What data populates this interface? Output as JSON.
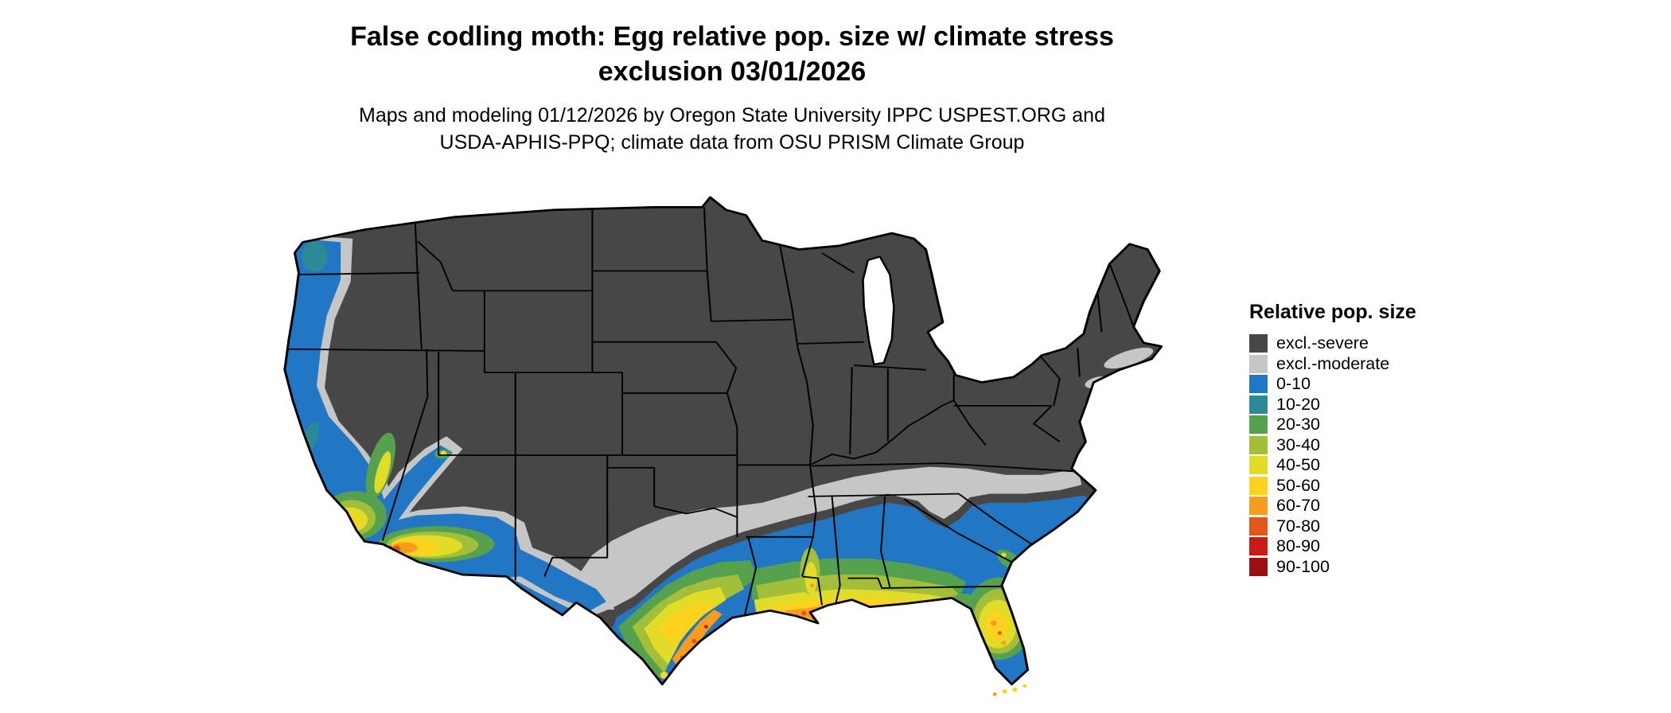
{
  "title": {
    "line1": "False codling moth: Egg relative pop. size w/ climate stress",
    "line2": "exclusion 03/01/2026"
  },
  "subtitle": {
    "line1": "Maps and modeling 01/12/2026 by Oregon State University IPPC USPEST.ORG and",
    "line2": "USDA-APHIS-PPQ; climate data from OSU PRISM Climate Group"
  },
  "legend": {
    "title": "Relative pop. size",
    "items": [
      {
        "label": "excl.-severe",
        "color": "#474747",
        "zone": "excl_severe"
      },
      {
        "label": "excl.-moderate",
        "color": "#c6c6c6",
        "zone": "excl_moderate"
      },
      {
        "label": "0-10",
        "color": "#2277c4",
        "zone": "b0"
      },
      {
        "label": "10-20",
        "color": "#2b8a95",
        "zone": "b10"
      },
      {
        "label": "20-30",
        "color": "#55a14e",
        "zone": "b20"
      },
      {
        "label": "30-40",
        "color": "#a3bf3a",
        "zone": "b30"
      },
      {
        "label": "40-50",
        "color": "#e0dc28",
        "zone": "b40"
      },
      {
        "label": "50-60",
        "color": "#fdd31f",
        "zone": "b50"
      },
      {
        "label": "60-70",
        "color": "#f79c1d",
        "zone": "b60"
      },
      {
        "label": "70-80",
        "color": "#e1571a",
        "zone": "b70"
      },
      {
        "label": "80-90",
        "color": "#ca1a14",
        "zone": "b80"
      },
      {
        "label": "90-100",
        "color": "#9e0d10",
        "zone": "b90"
      }
    ]
  }
}
